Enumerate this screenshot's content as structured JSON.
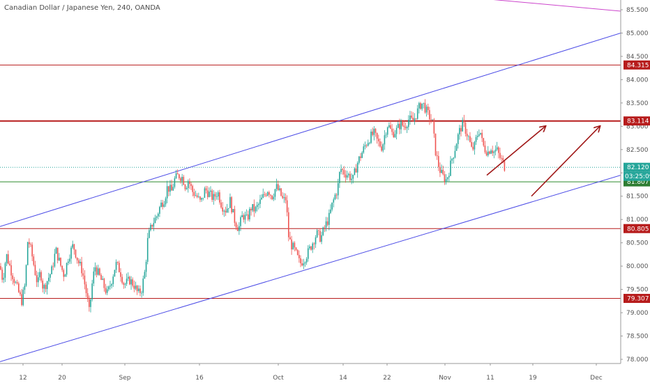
{
  "header": {
    "title": "Canadian Dollar / Japanese Yen, 240, OANDA"
  },
  "colors": {
    "up_candle": "#26a69a",
    "down_candle": "#ef5350",
    "channel_line": "#4a4ae6",
    "resistance_line": "#b71c1c",
    "support_line": "#2e8b2e",
    "arrow": "#a01818",
    "badge_green": "#2e7d32",
    "badge_teal": "#26a69a",
    "badge_red": "#b71c1c",
    "top_line": "#cc44cc"
  },
  "chart_data": {
    "type": "candlestick",
    "title": "Canadian Dollar / Japanese Yen, 240, OANDA",
    "ylim": [
      77.8,
      85.7
    ],
    "y_ticks": [
      "85.500",
      "85.000",
      "84.500",
      "84.000",
      "83.500",
      "83.000",
      "82.500",
      "82.000",
      "81.500",
      "81.000",
      "80.500",
      "80.000",
      "79.500",
      "79.000",
      "78.500",
      "78.000"
    ],
    "x_ticks": [
      "12",
      "20",
      "Sep",
      "16",
      "Oct",
      "14",
      "22",
      "Nov",
      "11",
      "19",
      "Dec"
    ],
    "price_path": [
      [
        0,
        80.0
      ],
      [
        4,
        79.7
      ],
      [
        9,
        80.25
      ],
      [
        16,
        79.9
      ],
      [
        24,
        79.55
      ],
      [
        31,
        79.25
      ],
      [
        36,
        79.6
      ],
      [
        40,
        80.6
      ],
      [
        45,
        80.3
      ],
      [
        50,
        79.9
      ],
      [
        54,
        79.6
      ],
      [
        58,
        79.9
      ],
      [
        62,
        79.5
      ],
      [
        68,
        79.7
      ],
      [
        74,
        79.9
      ],
      [
        80,
        80.35
      ],
      [
        86,
        80.05
      ],
      [
        92,
        79.8
      ],
      [
        98,
        80.2
      ],
      [
        105,
        80.45
      ],
      [
        112,
        80.1
      ],
      [
        118,
        79.9
      ],
      [
        124,
        79.4
      ],
      [
        128,
        79.0
      ],
      [
        132,
        79.6
      ],
      [
        136,
        80.0
      ],
      [
        142,
        79.8
      ],
      [
        148,
        79.6
      ],
      [
        154,
        79.4
      ],
      [
        160,
        79.7
      ],
      [
        166,
        80.05
      ],
      [
        172,
        79.9
      ],
      [
        178,
        79.6
      ],
      [
        186,
        79.7
      ],
      [
        192,
        79.6
      ],
      [
        198,
        79.4
      ],
      [
        203,
        79.5
      ],
      [
        208,
        79.9
      ],
      [
        212,
        80.6
      ],
      [
        218,
        80.9
      ],
      [
        224,
        81.05
      ],
      [
        230,
        81.3
      ],
      [
        236,
        81.45
      ],
      [
        240,
        81.7
      ],
      [
        246,
        81.6
      ],
      [
        250,
        81.85
      ],
      [
        256,
        81.95
      ],
      [
        262,
        81.9
      ],
      [
        266,
        81.7
      ],
      [
        270,
        81.85
      ],
      [
        276,
        81.6
      ],
      [
        282,
        81.5
      ],
      [
        288,
        81.35
      ],
      [
        294,
        81.65
      ],
      [
        300,
        81.55
      ],
      [
        306,
        81.45
      ],
      [
        312,
        81.6
      ],
      [
        318,
        81.3
      ],
      [
        324,
        81.2
      ],
      [
        330,
        81.4
      ],
      [
        336,
        81.0
      ],
      [
        342,
        80.8
      ],
      [
        348,
        81.1
      ],
      [
        354,
        81.0
      ],
      [
        360,
        81.25
      ],
      [
        366,
        81.2
      ],
      [
        372,
        81.35
      ],
      [
        378,
        81.5
      ],
      [
        384,
        81.65
      ],
      [
        390,
        81.5
      ],
      [
        396,
        81.7
      ],
      [
        402,
        81.55
      ],
      [
        406,
        81.4
      ],
      [
        410,
        81.45
      ],
      [
        414,
        80.6
      ],
      [
        418,
        80.45
      ],
      [
        422,
        80.35
      ],
      [
        426,
        80.2
      ],
      [
        430,
        80.05
      ],
      [
        436,
        80.15
      ],
      [
        442,
        80.3
      ],
      [
        448,
        80.5
      ],
      [
        454,
        80.7
      ],
      [
        460,
        80.6
      ],
      [
        466,
        80.85
      ],
      [
        472,
        81.05
      ],
      [
        476,
        81.3
      ],
      [
        480,
        81.5
      ],
      [
        484,
        81.65
      ],
      [
        488,
        82.1
      ],
      [
        494,
        82.0
      ],
      [
        500,
        81.95
      ],
      [
        506,
        81.85
      ],
      [
        512,
        82.2
      ],
      [
        518,
        82.4
      ],
      [
        524,
        82.6
      ],
      [
        530,
        82.75
      ],
      [
        536,
        82.85
      ],
      [
        542,
        82.65
      ],
      [
        548,
        82.55
      ],
      [
        552,
        82.85
      ],
      [
        556,
        83.05
      ],
      [
        562,
        82.85
      ],
      [
        568,
        82.9
      ],
      [
        574,
        83.05
      ],
      [
        580,
        83.0
      ],
      [
        586,
        83.15
      ],
      [
        592,
        83.1
      ],
      [
        598,
        83.3
      ],
      [
        604,
        83.5
      ],
      [
        608,
        83.45
      ],
      [
        612,
        83.3
      ],
      [
        616,
        83.2
      ],
      [
        620,
        83.1
      ],
      [
        624,
        82.5
      ],
      [
        628,
        82.2
      ],
      [
        632,
        82.0
      ],
      [
        636,
        81.9
      ],
      [
        640,
        81.85
      ],
      [
        644,
        82.05
      ],
      [
        648,
        82.3
      ],
      [
        652,
        82.5
      ],
      [
        656,
        82.75
      ],
      [
        660,
        82.95
      ],
      [
        664,
        83.05
      ],
      [
        668,
        82.9
      ],
      [
        672,
        82.75
      ],
      [
        676,
        82.5
      ],
      [
        680,
        82.55
      ],
      [
        684,
        82.8
      ],
      [
        688,
        82.95
      ],
      [
        692,
        82.6
      ],
      [
        696,
        82.5
      ],
      [
        700,
        82.45
      ],
      [
        704,
        82.55
      ],
      [
        708,
        82.45
      ],
      [
        712,
        82.5
      ],
      [
        716,
        82.35
      ],
      [
        720,
        82.25
      ],
      [
        724,
        82.12
      ]
    ],
    "levels": [
      {
        "value": 84.315,
        "label": "84.315",
        "style": "resistance"
      },
      {
        "value": 83.114,
        "label": "83.114",
        "style": "resistance-bold"
      },
      {
        "value": 82.12,
        "label": "82.120",
        "style": "current"
      },
      {
        "value": 81.807,
        "label": "81.807",
        "style": "support"
      },
      {
        "value": 80.805,
        "label": "80.805",
        "style": "resistance"
      },
      {
        "value": 79.307,
        "label": "79.307",
        "style": "resistance"
      }
    ],
    "countdown": "03:25:09",
    "channel": {
      "upper": [
        [
          0,
          80.85
        ],
        [
          890,
          85.0
        ]
      ],
      "lower": [
        [
          0,
          77.95
        ],
        [
          890,
          81.95
        ]
      ]
    },
    "top_line": [
      [
        705,
        85.72
      ],
      [
        890,
        85.47
      ]
    ],
    "arrows": [
      [
        [
          698,
          81.95
        ],
        [
          782,
          83.0
        ]
      ],
      [
        [
          762,
          81.5
        ],
        [
          860,
          83.0
        ]
      ]
    ]
  }
}
